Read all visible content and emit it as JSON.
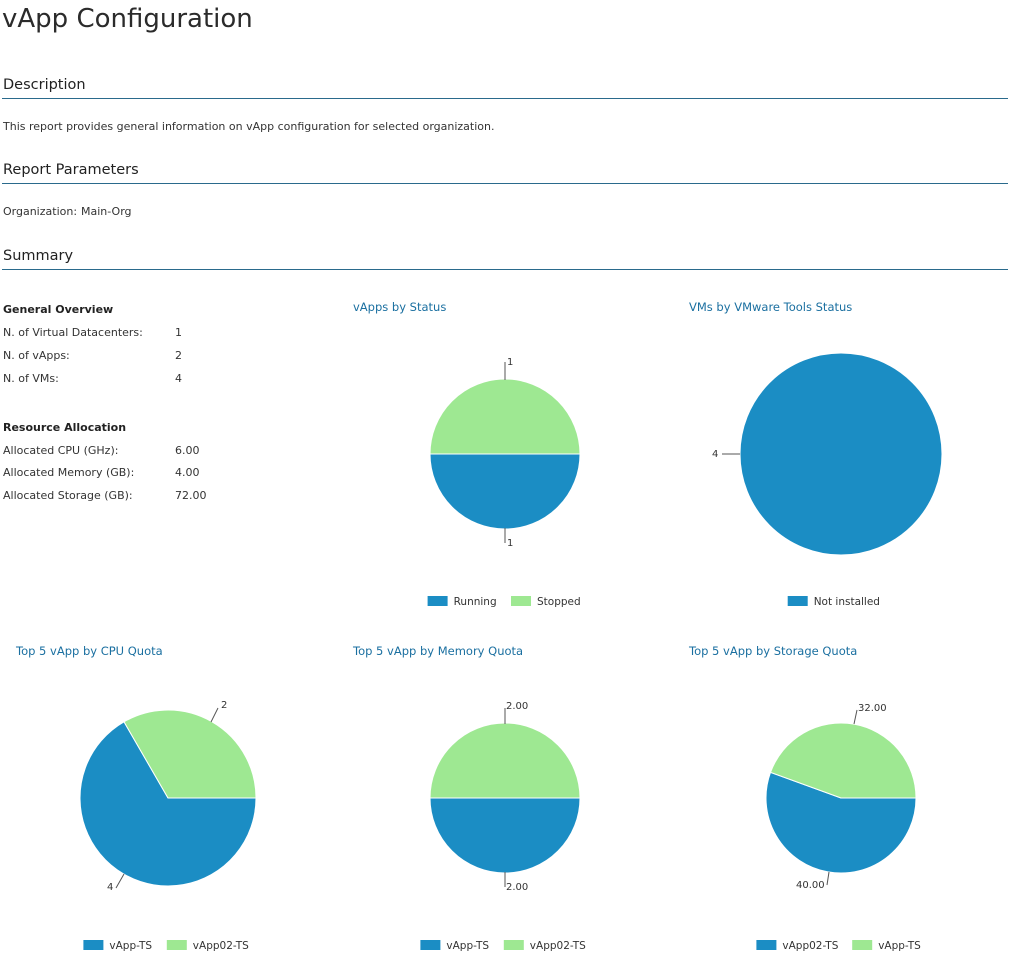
{
  "page_title": "vApp Configuration",
  "description": {
    "heading": "Description",
    "text": "This report provides general information on vApp configuration for selected organization."
  },
  "parameters": {
    "heading": "Report Parameters",
    "org_label": "Organization:",
    "org_value": "Main-Org"
  },
  "summary": {
    "heading": "Summary",
    "general_overview": {
      "title": "General Overview",
      "rows": [
        {
          "label": "N. of Virtual Datacenters:",
          "value": "1"
        },
        {
          "label": "N. of vApps:",
          "value": "2"
        },
        {
          "label": "N. of VMs:",
          "value": "4"
        }
      ]
    },
    "resource_allocation": {
      "title": "Resource Allocation",
      "rows": [
        {
          "label": "Allocated CPU (GHz):",
          "value": "6.00"
        },
        {
          "label": "Allocated Memory (GB):",
          "value": "4.00"
        },
        {
          "label": "Allocated Storage (GB):",
          "value": "72.00"
        }
      ]
    }
  },
  "colors": {
    "blue": "#1b8dc4",
    "green": "#9ee892",
    "accent": "#1a6fa0"
  },
  "chart_data": [
    {
      "type": "pie",
      "title": "vApps by Status",
      "categories": [
        "Running",
        "Stopped"
      ],
      "values": [
        1,
        1
      ],
      "value_labels": [
        "1",
        "1"
      ],
      "legend": [
        "Running",
        "Stopped"
      ],
      "legend_colors": [
        "#1b8dc4",
        "#9ee892"
      ]
    },
    {
      "type": "pie",
      "title": "VMs by VMware Tools Status",
      "categories": [
        "Not installed"
      ],
      "values": [
        4
      ],
      "value_labels": [
        "4"
      ],
      "legend": [
        "Not installed"
      ],
      "legend_colors": [
        "#1b8dc4"
      ]
    },
    {
      "type": "pie",
      "title": "Top 5 vApp by CPU Quota",
      "categories": [
        "vApp-TS",
        "vApp02-TS"
      ],
      "values": [
        4,
        2
      ],
      "value_labels": [
        "4",
        "2"
      ],
      "legend": [
        "vApp-TS",
        "vApp02-TS"
      ],
      "legend_colors": [
        "#1b8dc4",
        "#9ee892"
      ]
    },
    {
      "type": "pie",
      "title": "Top 5 vApp by Memory Quota",
      "categories": [
        "vApp-TS",
        "vApp02-TS"
      ],
      "values": [
        2.0,
        2.0
      ],
      "value_labels": [
        "2.00",
        "2.00"
      ],
      "legend": [
        "vApp-TS",
        "vApp02-TS"
      ],
      "legend_colors": [
        "#1b8dc4",
        "#9ee892"
      ]
    },
    {
      "type": "pie",
      "title": "Top 5 vApp by Storage Quota",
      "categories": [
        "vApp02-TS",
        "vApp-TS"
      ],
      "values": [
        40.0,
        32.0
      ],
      "value_labels": [
        "40.00",
        "32.00"
      ],
      "legend": [
        "vApp02-TS",
        "vApp-TS"
      ],
      "legend_colors": [
        "#1b8dc4",
        "#9ee892"
      ]
    }
  ]
}
